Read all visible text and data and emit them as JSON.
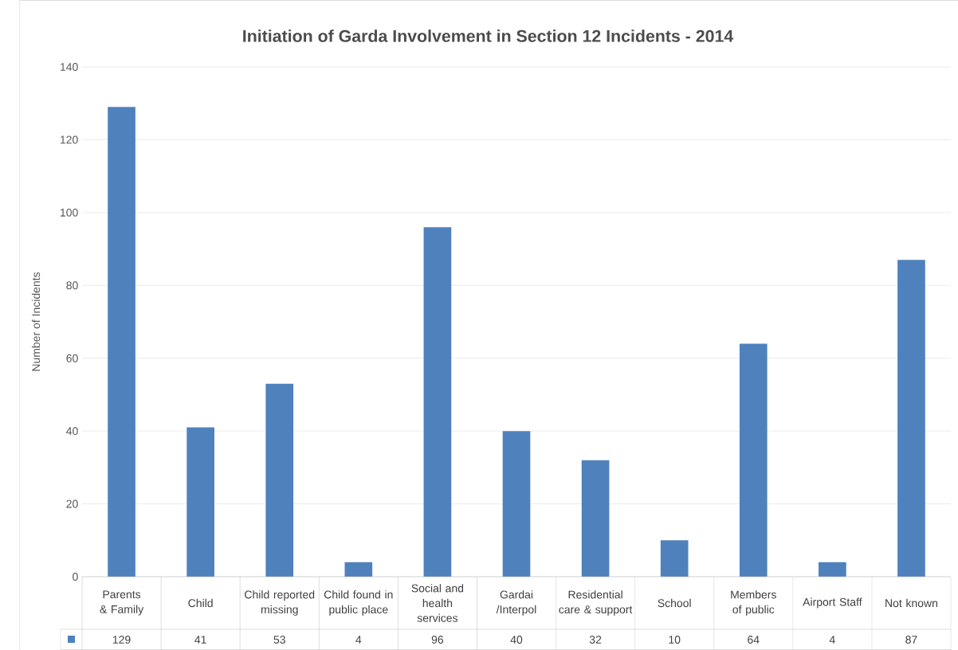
{
  "chart_data": {
    "type": "bar",
    "title": "Initiation of Garda Involvement in Section 12 Incidents - 2014",
    "ylabel": "Number of Incidents",
    "categories": [
      "Parents & Family",
      "Child",
      "Child reported missing",
      "Child found in public place",
      "Social and health services",
      "Gardai /Interpol",
      "Residential care & support",
      "School",
      "Members of public",
      "Airport Staff",
      "Not known"
    ],
    "values": [
      129,
      41,
      53,
      4,
      96,
      40,
      32,
      10,
      64,
      4,
      87
    ],
    "color": "#4f81bd",
    "ylim": [
      0,
      140
    ],
    "yticks": [
      0,
      20,
      40,
      60,
      80,
      100,
      120,
      140
    ],
    "grid": "y",
    "data_labels": true
  }
}
